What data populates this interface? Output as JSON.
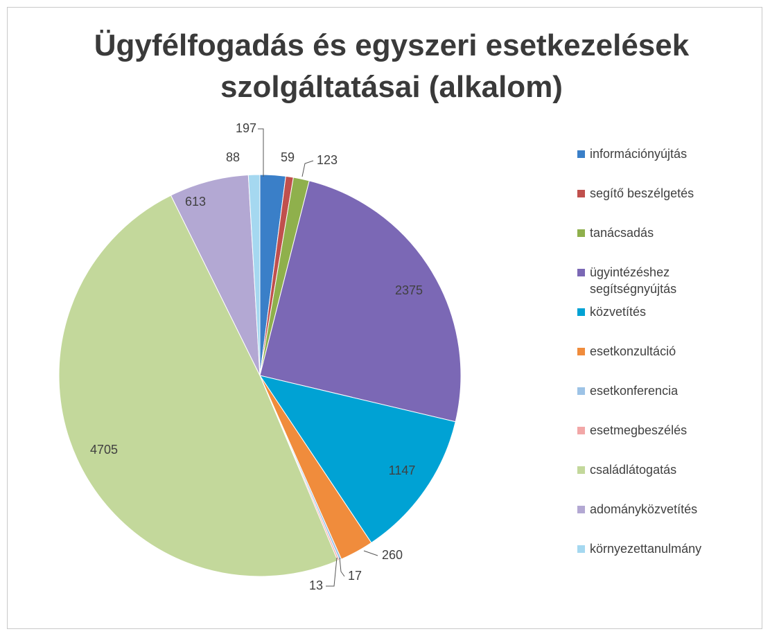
{
  "chart_data": {
    "type": "pie",
    "title": "Ügyfélfogadás és egyszeri esetkezelések szolgáltatásai (alkalom)",
    "categories": [
      "információnyújtás",
      "segítő beszélgetés",
      "tanácsadás",
      "ügyintézéshez segítségnyújtás",
      "közvetítés",
      "esetkonzultáció",
      "esetkonferencia",
      "esetmegbeszélés",
      "családlátogatás",
      "adományközvetítés",
      "környezettanulmány"
    ],
    "values": [
      197,
      59,
      123,
      2375,
      1147,
      260,
      17,
      13,
      4705,
      613,
      88
    ],
    "colors": [
      "#3a7fc8",
      "#c0504d",
      "#8fb04c",
      "#7b68b5",
      "#00a2d4",
      "#f08c3c",
      "#9dc3e6",
      "#f2a7a7",
      "#c3d89b",
      "#b3a8d3",
      "#a5d8f0"
    ],
    "legend": "right"
  }
}
